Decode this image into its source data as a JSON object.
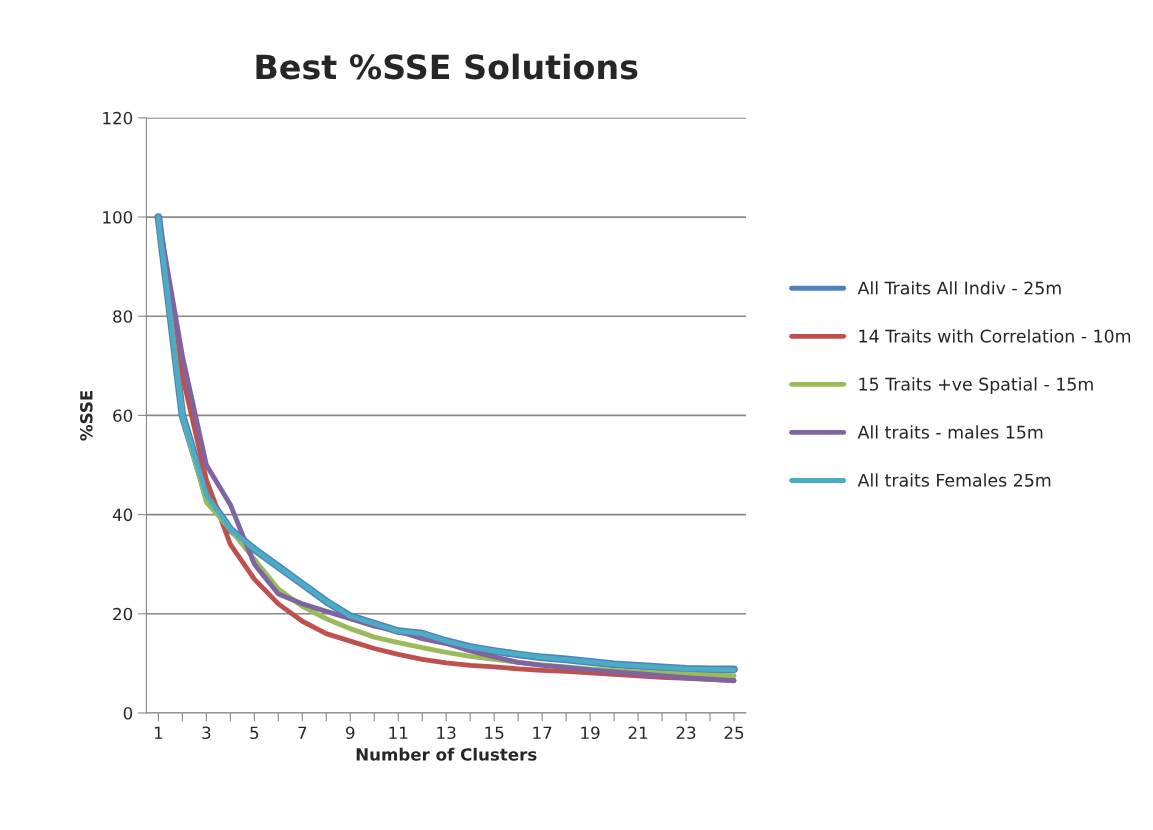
{
  "chart_data": {
    "type": "line",
    "title": "Best %SSE Solutions",
    "xlabel": "Number of Clusters",
    "ylabel": "%SSE",
    "categories": [
      "1",
      null,
      "3",
      null,
      "5",
      null,
      "7",
      null,
      "9",
      null,
      "11",
      null,
      "13",
      null,
      "15",
      null,
      "17",
      null,
      "19",
      null,
      "21",
      null,
      "23",
      null,
      "25"
    ],
    "series": [
      {
        "name": "All Traits All Indiv - 25m",
        "color": "#4f81bd",
        "values": [
          100,
          60,
          44,
          37,
          33,
          29.5,
          26,
          22.5,
          19.5,
          18,
          16.5,
          16,
          14.5,
          13.3,
          12.5,
          11.8,
          11.2,
          10.8,
          10.3,
          9.8,
          9.5,
          9.2,
          8.9,
          8.8,
          8.8
        ]
      },
      {
        "name": "14 Traits with Correlation - 10m",
        "color": "#c0504d",
        "values": [
          100,
          68,
          47,
          34,
          27,
          22,
          18.5,
          16,
          14.5,
          13,
          11.8,
          10.8,
          10.1,
          9.6,
          9.3,
          8.9,
          8.6,
          8.4,
          8.1,
          7.8,
          7.5,
          7.2,
          7,
          6.8,
          6.6
        ]
      },
      {
        "name": "15 Traits +ve Spatial - 15m",
        "color": "#9bbb59",
        "values": [
          100,
          60,
          42.5,
          37,
          31,
          25,
          21.5,
          19,
          17,
          15.3,
          14.2,
          13.2,
          12.2,
          11.4,
          10.8,
          10.2,
          9.7,
          9.3,
          8.9,
          8.6,
          8.3,
          8,
          7.8,
          7.6,
          7.5
        ]
      },
      {
        "name": "All traits - males 15m",
        "color": "#8064a2",
        "values": [
          100,
          72,
          50,
          42,
          30,
          24,
          22,
          20.5,
          19,
          17.5,
          16.5,
          15,
          14,
          12.5,
          11.3,
          10.2,
          9.6,
          9.2,
          8.7,
          8.3,
          7.9,
          7.5,
          7.1,
          6.8,
          6.5
        ]
      },
      {
        "name": "All traits Females 25m",
        "color": "#4bacc6",
        "values": [
          100,
          60,
          44,
          37,
          33,
          29.5,
          26,
          22.5,
          19.5,
          18,
          16.5,
          16,
          14.5,
          13.3,
          12.5,
          11.8,
          11.2,
          10.8,
          10.3,
          9.8,
          9.5,
          9.2,
          8.9,
          8.8,
          8.7
        ]
      }
    ],
    "ylim": [
      0,
      120
    ],
    "yticks": [
      0,
      20,
      40,
      60,
      80,
      100,
      120
    ],
    "grid": "y",
    "legend": "right"
  }
}
